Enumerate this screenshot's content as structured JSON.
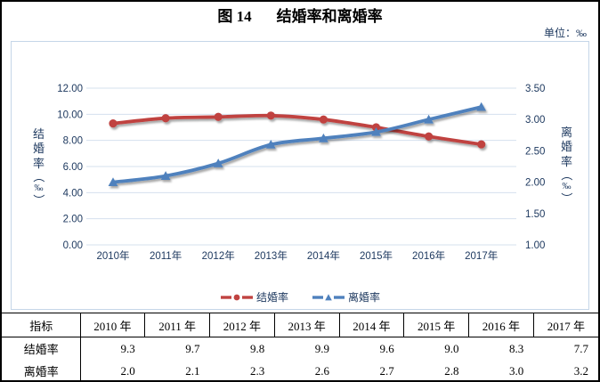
{
  "figure": {
    "title_prefix": "图 14",
    "title_text": "结婚率和离婚率",
    "unit_label": "单位：‰"
  },
  "colors": {
    "text_navy": "#1f3a60",
    "grid_line": "#d5e0ee",
    "chart_border": "#c5d6e8",
    "marriage_red": "#c04341",
    "divorce_blue": "#4f81bd",
    "table_border": "#000000"
  },
  "chart_data": {
    "type": "line",
    "title": "图 14 结婚率和离婚率",
    "smoothed": true,
    "grid": true,
    "legend_position": "bottom",
    "categories": [
      "2010年",
      "2011年",
      "2012年",
      "2013年",
      "2014年",
      "2015年",
      "2016年",
      "2017年"
    ],
    "series": [
      {
        "name": "结婚率",
        "slug": "marriage-rate",
        "axis": "left",
        "marker": "circle",
        "color": "#c04341",
        "values": [
          9.3,
          9.7,
          9.8,
          9.9,
          9.6,
          9.0,
          8.3,
          7.7
        ]
      },
      {
        "name": "离婚率",
        "slug": "divorce-rate",
        "axis": "right",
        "marker": "triangle",
        "color": "#4f81bd",
        "values": [
          2.0,
          2.1,
          2.3,
          2.6,
          2.7,
          2.8,
          3.0,
          3.2
        ]
      }
    ],
    "left_axis": {
      "title": "结婚率（‰）",
      "min": 0,
      "max": 12,
      "step": 2,
      "tick_labels": [
        "0.00",
        "2.00",
        "4.00",
        "6.00",
        "8.00",
        "10.00",
        "12.00"
      ]
    },
    "right_axis": {
      "title": "离婚率（‰）",
      "min": 1.0,
      "max": 3.5,
      "step": 0.5,
      "tick_labels": [
        "1.00",
        "1.50",
        "2.00",
        "2.50",
        "3.00",
        "3.50"
      ]
    }
  },
  "table": {
    "headers": [
      "指标",
      "2010 年",
      "2011 年",
      "2012 年",
      "2013 年",
      "2014 年",
      "2015 年",
      "2016 年",
      "2017 年"
    ],
    "rows": [
      {
        "label": "结婚率",
        "values": [
          "9.3",
          "9.7",
          "9.8",
          "9.9",
          "9.6",
          "9.0",
          "8.3",
          "7.7"
        ]
      },
      {
        "label": "离婚率",
        "values": [
          "2.0",
          "2.1",
          "2.3",
          "2.6",
          "2.7",
          "2.8",
          "3.0",
          "3.2"
        ]
      }
    ]
  }
}
